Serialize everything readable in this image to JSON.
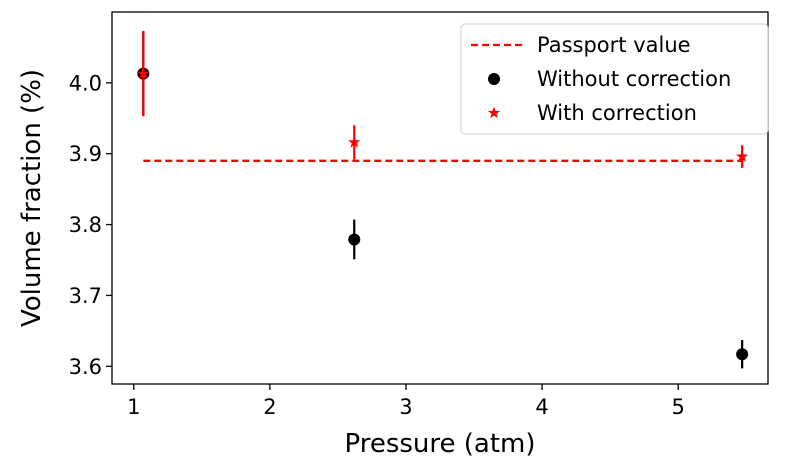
{
  "chart_data": {
    "type": "scatter",
    "title": "",
    "xlabel": "Pressure (atm)",
    "ylabel": "Volume fraction  (%)",
    "xlim": [
      0.84,
      5.66
    ],
    "ylim": [
      3.575,
      4.1
    ],
    "xticks": [
      1,
      2,
      3,
      4,
      5
    ],
    "xtick_labels": [
      "1",
      "2",
      "3",
      "4",
      "5"
    ],
    "yticks": [
      3.6,
      3.7,
      3.8,
      3.9,
      4.0
    ],
    "ytick_labels": [
      "3.6",
      "3.7",
      "3.8",
      "3.9",
      "4.0"
    ],
    "grid": false,
    "legend_position": "top-right",
    "series": [
      {
        "name": "Passport value",
        "kind": "dashed-line",
        "color": "#ff0000",
        "x": [
          1.07,
          5.47
        ],
        "y": [
          3.89,
          3.89
        ]
      },
      {
        "name": "Without correction",
        "kind": "errorbar-circle",
        "color": "#000000",
        "x": [
          1.07,
          2.62,
          5.47
        ],
        "y": [
          4.013,
          3.779,
          3.617
        ],
        "yerr": [
          0.06,
          0.028,
          0.02
        ]
      },
      {
        "name": "With correction",
        "kind": "errorbar-star",
        "color": "#ff0000",
        "x": [
          1.07,
          2.62,
          5.47
        ],
        "y": [
          4.013,
          3.916,
          3.896
        ],
        "yerr": [
          0.06,
          0.024,
          0.016
        ]
      }
    ]
  }
}
